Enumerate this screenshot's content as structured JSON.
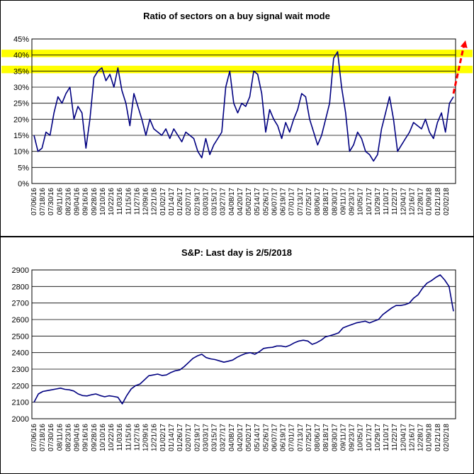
{
  "colors": {
    "line": "#000080",
    "band": "#ffff00",
    "arrow": "#ff0000",
    "grid": "#000000",
    "border": "#000000"
  },
  "chart_data": [
    {
      "type": "line",
      "title": "Ratio of sectors on a buy signal wait mode",
      "y_tick_labels": [
        "0%",
        "5%",
        "10%",
        "15%",
        "20%",
        "25%",
        "30%",
        "35%",
        "40%",
        "45%"
      ],
      "ylim": [
        0,
        45
      ],
      "y_unit": "percent",
      "grid": "horizontal",
      "x_tick_labels": [
        "07/06/16",
        "07/18/16",
        "07/30/16",
        "08/11/16",
        "08/23/16",
        "09/04/16",
        "09/16/16",
        "09/28/16",
        "10/10/16",
        "10/22/16",
        "11/03/16",
        "11/15/16",
        "11/27/16",
        "12/09/16",
        "12/21/16",
        "01/02/17",
        "01/14/17",
        "01/26/17",
        "02/07/17",
        "02/19/17",
        "03/03/17",
        "03/15/17",
        "03/27/17",
        "04/08/17",
        "04/20/17",
        "05/02/17",
        "05/14/17",
        "05/26/17",
        "06/07/17",
        "06/19/17",
        "07/01/17",
        "07/13/17",
        "07/25/17",
        "08/06/17",
        "08/18/17",
        "08/30/17",
        "09/11/17",
        "09/23/17",
        "10/05/17",
        "10/17/17",
        "10/29/17",
        "11/10/17",
        "11/22/17",
        "12/04/17",
        "12/16/17",
        "12/28/17",
        "01/09/18",
        "01/21/18",
        "02/02/18"
      ],
      "highlight_bands": [
        [
          35,
          36
        ],
        [
          40,
          41
        ]
      ],
      "trend_arrow": {
        "from_y": 28,
        "to_y": 45
      },
      "series": [
        {
          "values": [
            15,
            10,
            11,
            16,
            15,
            22,
            27,
            25,
            28,
            30,
            20,
            24,
            22,
            11,
            20,
            33,
            35,
            36,
            32,
            34,
            30,
            36,
            29,
            25,
            18,
            28,
            24,
            20,
            15,
            20,
            17,
            16,
            15,
            17,
            14,
            17,
            15,
            13,
            16,
            15,
            14,
            10,
            8,
            14,
            9,
            12,
            14,
            16,
            30,
            35,
            25,
            22,
            25,
            24,
            27,
            35,
            34,
            28,
            16,
            23,
            20,
            18,
            14,
            19,
            16,
            20,
            23,
            28,
            27,
            20,
            16,
            12,
            15,
            20,
            25,
            39,
            41,
            30,
            22,
            10,
            12,
            16,
            14,
            10,
            9,
            7,
            9,
            17,
            22,
            27,
            20,
            10,
            12,
            14,
            16,
            19,
            18,
            17,
            20,
            16,
            14,
            19,
            22,
            16,
            25,
            27
          ]
        }
      ]
    },
    {
      "type": "line",
      "title": "S&P: Last day is 2/5/2018",
      "y_tick_labels": [
        "2000",
        "2100",
        "2200",
        "2300",
        "2400",
        "2500",
        "2600",
        "2700",
        "2800",
        "2900"
      ],
      "ylim": [
        2000,
        2900
      ],
      "grid": "horizontal",
      "x_tick_labels": [
        "07/06/16",
        "07/18/16",
        "07/30/16",
        "08/11/16",
        "08/23/16",
        "09/04/16",
        "09/16/16",
        "09/28/16",
        "10/10/16",
        "10/22/16",
        "11/03/16",
        "11/15/16",
        "11/27/16",
        "12/09/16",
        "12/21/16",
        "01/02/17",
        "01/14/17",
        "01/26/17",
        "02/07/17",
        "02/19/17",
        "03/03/17",
        "03/15/17",
        "03/27/17",
        "04/08/17",
        "04/20/17",
        "05/02/17",
        "05/14/17",
        "05/26/17",
        "06/07/17",
        "06/19/17",
        "07/01/17",
        "07/13/17",
        "07/25/17",
        "08/06/17",
        "08/18/17",
        "08/30/17",
        "09/11/17",
        "09/23/17",
        "10/05/17",
        "10/17/17",
        "10/29/17",
        "11/10/17",
        "11/22/17",
        "12/04/17",
        "12/16/17",
        "12/28/17",
        "01/09/18",
        "01/21/18",
        "02/02/18"
      ],
      "series": [
        {
          "values": [
            2100,
            2150,
            2165,
            2170,
            2175,
            2180,
            2185,
            2178,
            2175,
            2168,
            2150,
            2140,
            2138,
            2145,
            2150,
            2140,
            2133,
            2139,
            2135,
            2130,
            2090,
            2140,
            2180,
            2200,
            2210,
            2235,
            2260,
            2265,
            2270,
            2262,
            2265,
            2280,
            2290,
            2295,
            2315,
            2340,
            2365,
            2380,
            2390,
            2370,
            2362,
            2358,
            2350,
            2342,
            2348,
            2355,
            2372,
            2385,
            2395,
            2400,
            2390,
            2405,
            2425,
            2430,
            2432,
            2440,
            2440,
            2435,
            2445,
            2460,
            2470,
            2475,
            2470,
            2450,
            2460,
            2475,
            2495,
            2502,
            2510,
            2520,
            2550,
            2560,
            2570,
            2580,
            2585,
            2590,
            2580,
            2590,
            2600,
            2630,
            2650,
            2670,
            2685,
            2685,
            2690,
            2700,
            2730,
            2750,
            2790,
            2820,
            2835,
            2855,
            2870,
            2840,
            2800,
            2650
          ]
        }
      ]
    }
  ]
}
